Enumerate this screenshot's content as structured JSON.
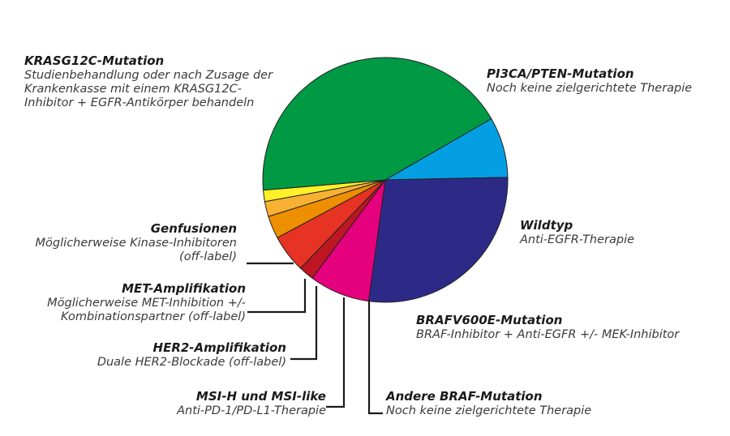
{
  "chart_data": {
    "type": "pie",
    "colors": {
      "krasg12c": "#009a44",
      "pi3ca": "#049fe2",
      "wildtyp": "#2d2a87",
      "brafv600e": "#e5007e",
      "andere_braf": "#be1622",
      "msi": "#e63323",
      "her2": "#ee8f00",
      "met": "#f8b133",
      "genfusionen": "#fff028",
      "leader": "#1a1a1a"
    },
    "slices": [
      {
        "key": "pi3ca",
        "name": "PI3CA/PTEN-Mutation",
        "therapy": "Noch keine zielgerichtete Therapie",
        "value": 8
      },
      {
        "key": "wildtyp",
        "name": "Wildtyp",
        "therapy": "Anti-EGFR-Therapie",
        "value": 27.5
      },
      {
        "key": "brafv600e",
        "name": "BRAFV600E-Mutation",
        "therapy": "BRAF-Inhibitor + Anti-EGFR +/- MEK-Inhibitor",
        "value": 8
      },
      {
        "key": "andere_braf",
        "name": "Andere BRAF-Mutation",
        "therapy": "Noch keine zielgerichtete Therapie",
        "value": 2
      },
      {
        "key": "msi",
        "name": "MSI-H und MSI-like",
        "therapy": "Anti-PD-1/PD-L1-Therapie",
        "value": 5
      },
      {
        "key": "her2",
        "name": "HER2-Amplifikation",
        "therapy": "Duale HER2-Blockade (off-label)",
        "value": 3
      },
      {
        "key": "met",
        "name": "MET-Amplifikation",
        "therapy": "Möglicherweise MET-Inhibition +/- Kombinationspartner (off-label)",
        "value": 2
      },
      {
        "key": "genfusionen",
        "name": "Genfusionen",
        "therapy": "Möglicherweise Kinase-Inhibitoren (off-label)",
        "value": 1.5
      },
      {
        "key": "krasg12c",
        "name": "KRASG12C-Mutation",
        "therapy": "Studienbehandlung oder nach Zusage der Krankenkasse mit einem KRASG12C-Inhibitor + EGFR-Antikörper behandeln",
        "value": 43
      }
    ]
  },
  "labels": {
    "krasg12c": {
      "title": "KRASG12C-Mutation",
      "lines": [
        "Studienbehandlung oder nach Zusage der",
        "Krankenkasse mit einem KRASG12C-",
        "Inhibitor + EGFR-Antikörper behandeln"
      ]
    },
    "pi3ca": {
      "title": "PI3CA/PTEN-Mutation",
      "lines": [
        "Noch keine zielgerichtete Therapie"
      ]
    },
    "wildtyp": {
      "title": "Wildtyp",
      "lines": [
        "Anti-EGFR-Therapie"
      ]
    },
    "brafv600e": {
      "title": "BRAFV600E-Mutation",
      "lines": [
        "BRAF-Inhibitor + Anti-EGFR +/- MEK-Inhibitor"
      ]
    },
    "andere_braf": {
      "title": "Andere BRAF-Mutation",
      "lines": [
        "Noch keine zielgerichtete Therapie"
      ]
    },
    "msi": {
      "title": "MSI-H und MSI-like",
      "lines": [
        "Anti-PD-1/PD-L1-Therapie"
      ]
    },
    "her2": {
      "title": "HER2-Amplifikation",
      "lines": [
        "Duale HER2-Blockade (off-label)"
      ]
    },
    "met": {
      "title": "MET-Amplifikation",
      "lines": [
        "Möglicherweise MET-Inhibition +/-",
        "Kombinationspartner (off-label)"
      ]
    },
    "genfusionen": {
      "title": "Genfusionen",
      "lines": [
        "Möglicherweise Kinase-Inhibitoren",
        "(off-label)"
      ]
    }
  }
}
